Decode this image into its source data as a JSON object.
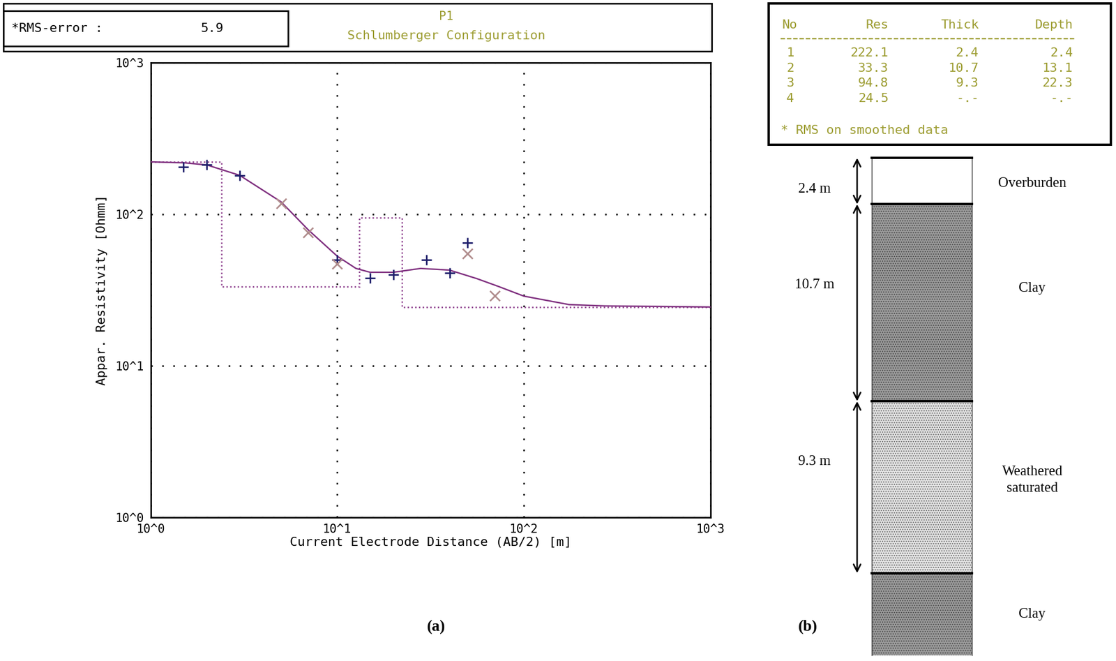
{
  "chart_data": {
    "title": "P1",
    "subtitle": "Schlumberger Configuration",
    "rms_error": {
      "label": "*RMS-error :",
      "value": 5.9
    },
    "x_label": "Current Electrode Distance (AB/2) [m]",
    "y_label": "Appar. Resistivity [Ohmm]",
    "log": true,
    "grid": true,
    "xlim": [
      1,
      1000
    ],
    "ylim": [
      1,
      1000
    ],
    "xticks": [
      {
        "value": 1,
        "label": "10^0"
      },
      {
        "value": 10,
        "label": "10^1"
      },
      {
        "value": 100,
        "label": "10^2"
      },
      {
        "value": 1000,
        "label": "10^3"
      }
    ],
    "yticks": [
      {
        "value": 1,
        "label": "10^0"
      },
      {
        "value": 10,
        "label": "10^1"
      },
      {
        "value": 100,
        "label": "10^2"
      },
      {
        "value": 1000,
        "label": "10^3"
      }
    ],
    "series": [
      {
        "type": "scatter",
        "marker": "plus",
        "color": "#1f1f6b",
        "x": [
          1.5,
          2,
          3,
          10,
          15,
          20,
          30,
          40,
          50
        ],
        "values": [
          205,
          212,
          181,
          50,
          38,
          40,
          50,
          41,
          65
        ]
      },
      {
        "type": "scatter",
        "marker": "x",
        "color": "#b08c8c",
        "x": [
          5,
          7,
          10,
          50,
          70
        ],
        "values": [
          118,
          76,
          47,
          55,
          29
        ]
      },
      {
        "type": "line",
        "line_style": "solid",
        "color": "#7f2f7f",
        "x": [
          1,
          1.5,
          2,
          3,
          5,
          7,
          10,
          12.6,
          15,
          20,
          28,
          40,
          56,
          73,
          100,
          175,
          272,
          1000
        ],
        "values": [
          222,
          219,
          212,
          181,
          121,
          79,
          53,
          44,
          41.5,
          41.5,
          44,
          42.9,
          37.7,
          33.5,
          28.9,
          25.4,
          24.9,
          24.5
        ]
      }
    ],
    "model_line": {
      "type": "step",
      "line_style": "dotted",
      "color": "#8a3a8a"
    }
  },
  "model_table": {
    "columns": [
      "No",
      "Res",
      "Thick",
      "Depth"
    ],
    "rows": [
      [
        1,
        222.1,
        2.4,
        2.4
      ],
      [
        2,
        33.3,
        10.7,
        13.1
      ],
      [
        3,
        94.8,
        9.3,
        22.3
      ],
      [
        4,
        24.5,
        "-.-",
        "-.-"
      ]
    ],
    "note": "* RMS on smoothed data"
  },
  "lithology_column": {
    "layers": [
      {
        "name": "Overburden",
        "thickness": "2.4 m"
      },
      {
        "name": "Clay",
        "thickness": "10.7 m"
      },
      {
        "name": "Weathered\nsaturated",
        "thickness": "9.3 m"
      },
      {
        "name": "Clay"
      }
    ]
  },
  "panel_labels": [
    "(a)",
    "(b)"
  ]
}
